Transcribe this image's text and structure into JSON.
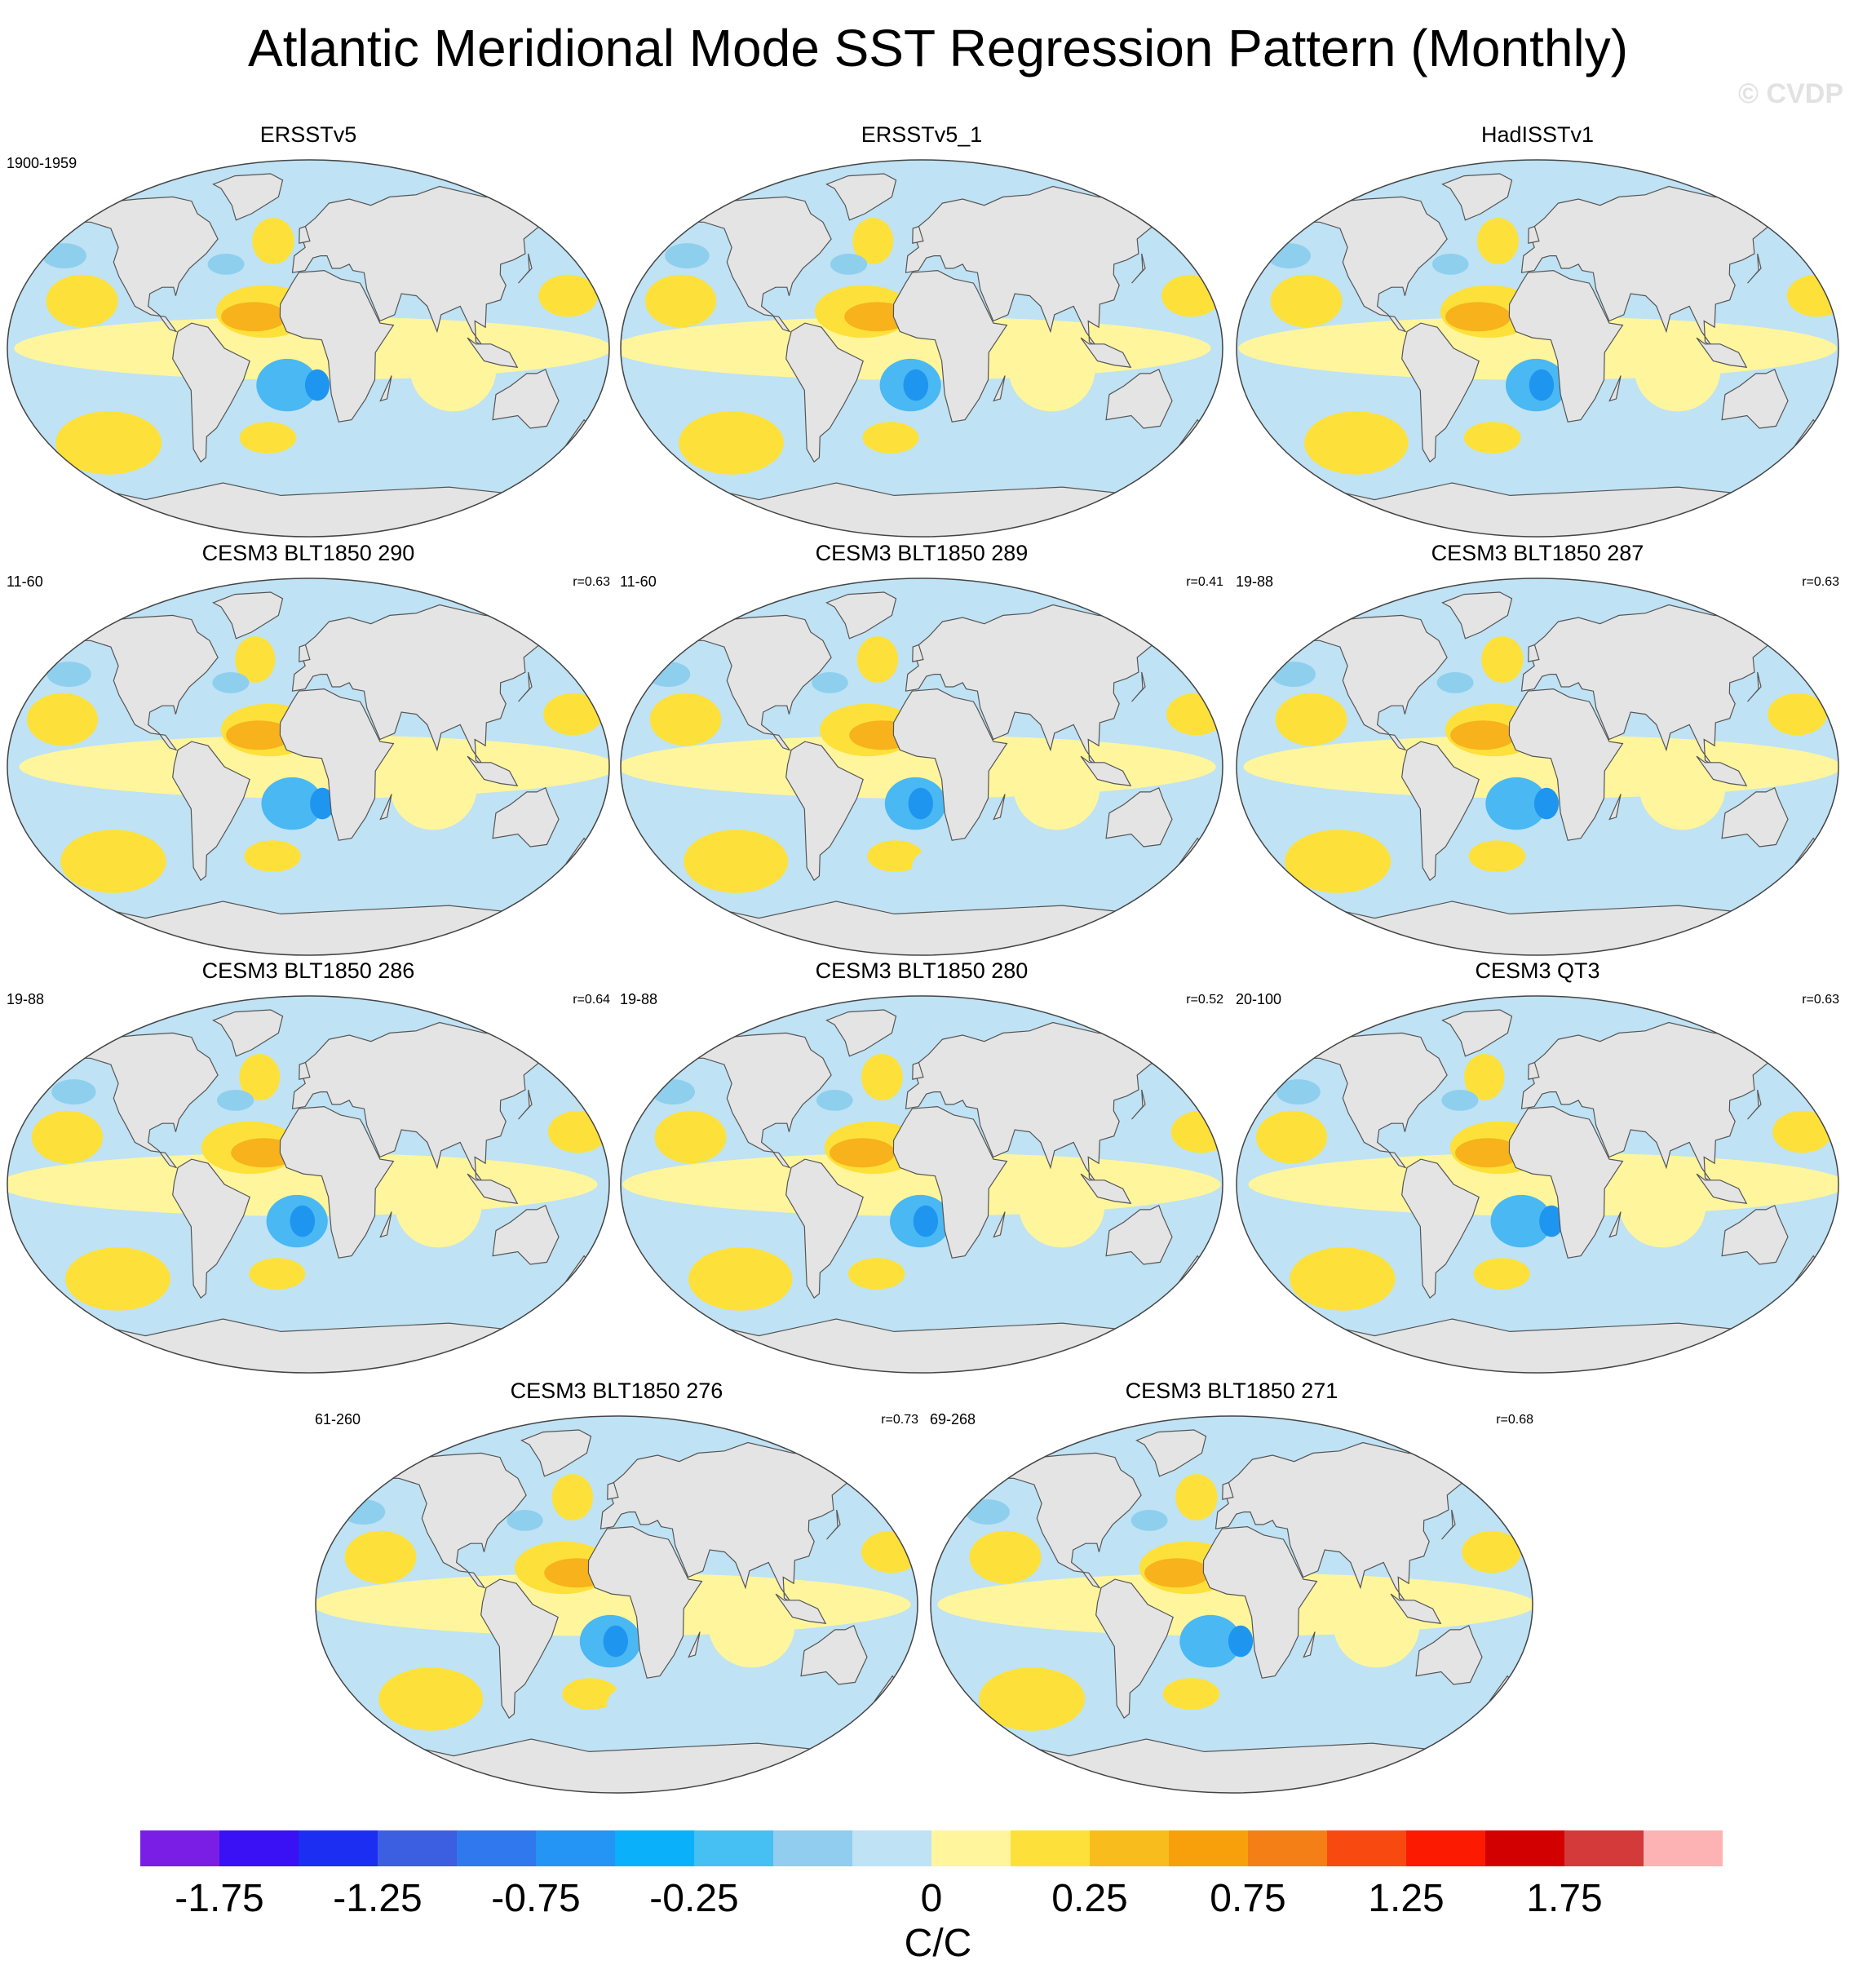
{
  "title": "Atlantic Meridional Mode SST Regression Pattern (Monthly)",
  "watermark": "© CVDP",
  "colors": {
    "land": "#e4e4e4",
    "coast": "#555555",
    "positive_weak": "#fff59d",
    "positive_mid": "#fde13a",
    "positive_strong": "#f7b21c",
    "positive_peak": "#f57f17",
    "positive_extreme": "#e53935",
    "negative_weak": "#bfe2f4",
    "negative_mid": "#8fcfee",
    "negative_strong": "#4ab8f2",
    "negative_peak": "#1e96f0"
  },
  "panels": [
    {
      "title": "ERSSTv5",
      "years": "1900-1959",
      "corr": ""
    },
    {
      "title": "ERSSTv5_1",
      "years": "",
      "corr": ""
    },
    {
      "title": "HadISSTv1",
      "years": "",
      "corr": ""
    },
    {
      "title": "CESM3 BLT1850 290",
      "years": "11-60",
      "corr": "r=0.63"
    },
    {
      "title": "CESM3 BLT1850 289",
      "years": "11-60",
      "corr": "r=0.41"
    },
    {
      "title": "CESM3 BLT1850 287",
      "years": "19-88",
      "corr": "r=0.63"
    },
    {
      "title": "CESM3 BLT1850 286",
      "years": "19-88",
      "corr": "r=0.64"
    },
    {
      "title": "CESM3 BLT1850 280",
      "years": "19-88",
      "corr": "r=0.52"
    },
    {
      "title": "CESM3 QT3",
      "years": "20-100",
      "corr": "r=0.63"
    },
    {
      "title": "CESM3 BLT1850 276",
      "years": "61-260",
      "corr": "r=0.73"
    },
    {
      "title": "CESM3 BLT1850 271",
      "years": "69-268",
      "corr": "r=0.68"
    }
  ],
  "colorbar": {
    "colors": [
      "#7a1ee6",
      "#3a10f5",
      "#1c2ef2",
      "#3c5ee0",
      "#2f78ee",
      "#2494f5",
      "#0ab0fa",
      "#46bff2",
      "#90cdee",
      "#bfe2f4",
      "#fff59d",
      "#fde13a",
      "#f8bd1c",
      "#f7a00c",
      "#f57f17",
      "#f84a10",
      "#fc1a00",
      "#d30000",
      "#d53a3a",
      "#fdb3b3"
    ],
    "labels": [
      "-1.75",
      "-1.25",
      "-0.75",
      "-0.25",
      "0",
      "0.25",
      "0.75",
      "1.25",
      "1.75"
    ],
    "label_positions": [
      1,
      3,
      5,
      7,
      10,
      12,
      14,
      16,
      18
    ],
    "units": "C/C"
  }
}
